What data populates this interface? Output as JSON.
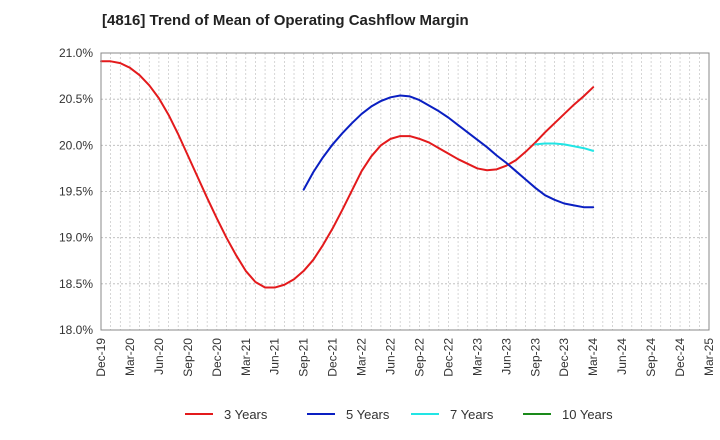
{
  "chart_data": {
    "type": "line",
    "title": "[4816]  Trend of Mean of Operating Cashflow Margin",
    "xlabel": "",
    "ylabel": "",
    "ylim": [
      18.0,
      21.0
    ],
    "y_ticks": [
      "18.0%",
      "18.5%",
      "19.0%",
      "19.5%",
      "20.0%",
      "20.5%",
      "21.0%"
    ],
    "x_ticks": [
      "Dec-19",
      "Mar-20",
      "Jun-20",
      "Sep-20",
      "Dec-20",
      "Mar-21",
      "Jun-21",
      "Sep-21",
      "Dec-21",
      "Mar-22",
      "Jun-22",
      "Sep-22",
      "Dec-22",
      "Mar-23",
      "Jun-23",
      "Sep-23",
      "Dec-23",
      "Mar-24",
      "Jun-24",
      "Sep-24",
      "Dec-24",
      "Mar-25"
    ],
    "x_start": "Dec-19",
    "step_unit": "month",
    "grid": true,
    "legend_position": "bottom",
    "series": [
      {
        "name": "3 Years",
        "color": "#e31a1c",
        "x": [
          "Dec-19",
          "Jan-20",
          "Feb-20",
          "Mar-20",
          "Apr-20",
          "May-20",
          "Jun-20",
          "Jul-20",
          "Aug-20",
          "Sep-20",
          "Oct-20",
          "Nov-20",
          "Dec-20",
          "Jan-21",
          "Feb-21",
          "Mar-21",
          "Apr-21",
          "May-21",
          "Jun-21",
          "Jul-21",
          "Aug-21",
          "Sep-21",
          "Oct-21",
          "Nov-21",
          "Dec-21",
          "Jan-22",
          "Feb-22",
          "Mar-22",
          "Apr-22",
          "May-22",
          "Jun-22",
          "Jul-22",
          "Aug-22",
          "Sep-22",
          "Oct-22",
          "Nov-22",
          "Dec-22",
          "Jan-23",
          "Feb-23",
          "Mar-23",
          "Apr-23",
          "May-23",
          "Jun-23",
          "Jul-23",
          "Aug-23",
          "Sep-23",
          "Oct-23",
          "Nov-23",
          "Dec-23",
          "Jan-24",
          "Feb-24",
          "Mar-24"
        ],
        "values": [
          20.91,
          20.91,
          20.89,
          20.84,
          20.76,
          20.65,
          20.51,
          20.33,
          20.12,
          19.89,
          19.66,
          19.43,
          19.21,
          19.0,
          18.81,
          18.64,
          18.52,
          18.46,
          18.46,
          18.49,
          18.55,
          18.64,
          18.76,
          18.92,
          19.1,
          19.3,
          19.51,
          19.72,
          19.88,
          20.0,
          20.07,
          20.1,
          20.1,
          20.07,
          20.03,
          19.97,
          19.91,
          19.85,
          19.8,
          19.75,
          19.73,
          19.74,
          19.78,
          19.84,
          19.93,
          20.03,
          20.14,
          20.24,
          20.34,
          20.44,
          20.53,
          20.63
        ]
      },
      {
        "name": "5 Years",
        "color": "#0a1fc2",
        "x": [
          "Sep-21",
          "Oct-21",
          "Nov-21",
          "Dec-21",
          "Jan-22",
          "Feb-22",
          "Mar-22",
          "Apr-22",
          "May-22",
          "Jun-22",
          "Jul-22",
          "Aug-22",
          "Sep-22",
          "Oct-22",
          "Nov-22",
          "Dec-22",
          "Jan-23",
          "Feb-23",
          "Mar-23",
          "Apr-23",
          "May-23",
          "Jun-23",
          "Jul-23",
          "Aug-23",
          "Sep-23",
          "Oct-23",
          "Nov-23",
          "Dec-23",
          "Jan-24",
          "Feb-24",
          "Mar-24"
        ],
        "values": [
          19.52,
          19.71,
          19.87,
          20.01,
          20.13,
          20.24,
          20.34,
          20.42,
          20.48,
          20.52,
          20.54,
          20.53,
          20.49,
          20.43,
          20.37,
          20.3,
          20.22,
          20.14,
          20.06,
          19.98,
          19.89,
          19.81,
          19.72,
          19.63,
          19.54,
          19.46,
          19.41,
          19.37,
          19.35,
          19.33,
          19.33
        ]
      },
      {
        "name": "7 Years",
        "color": "#22e5e5",
        "x": [
          "Sep-23",
          "Oct-23",
          "Nov-23",
          "Dec-23",
          "Jan-24",
          "Feb-24",
          "Mar-24"
        ],
        "values": [
          20.01,
          20.02,
          20.02,
          20.01,
          19.99,
          19.97,
          19.94
        ]
      },
      {
        "name": "10 Years",
        "color": "#1a8a1a",
        "x": [],
        "values": []
      }
    ]
  }
}
